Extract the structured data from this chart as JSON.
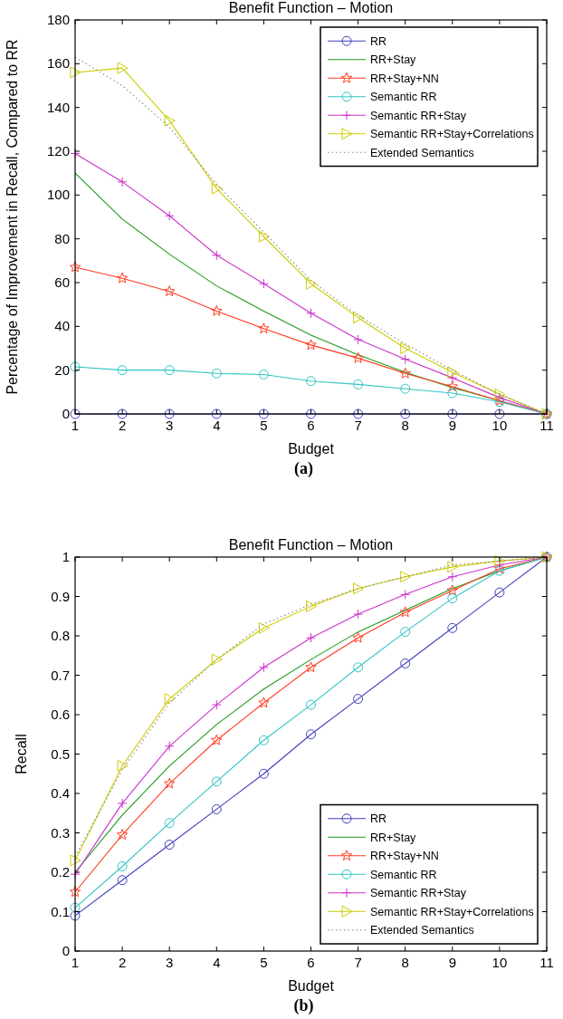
{
  "chart_data": [
    {
      "type": "line",
      "title": "Benefit Function – Motion",
      "xlabel": "Budget",
      "ylabel": "Percentage of Improvement in Recall, Compared to RR",
      "annotations": [
        "(a)"
      ],
      "x": [
        1,
        2,
        3,
        4,
        5,
        6,
        7,
        8,
        9,
        10,
        11
      ],
      "xlim": [
        1,
        11
      ],
      "xticks": [
        1,
        2,
        3,
        4,
        5,
        6,
        7,
        8,
        9,
        10,
        11
      ],
      "ylim": [
        0,
        180
      ],
      "yticks": [
        0,
        20,
        40,
        60,
        80,
        100,
        120,
        140,
        160,
        180
      ],
      "grid": false,
      "legend": "top right",
      "series": [
        {
          "name": "RR",
          "color": "#3f3fbf",
          "marker": "circle",
          "values": [
            0,
            0,
            0,
            0,
            0,
            0,
            0,
            0,
            0,
            0,
            0
          ]
        },
        {
          "name": "RR+Stay",
          "color": "#1a9a1a",
          "marker": "none",
          "values": [
            110,
            89,
            73,
            58.5,
            47,
            36,
            27,
            19,
            12,
            null,
            0
          ]
        },
        {
          "name": "RR+Stay+NN",
          "color": "#ff3b1f",
          "marker": "star",
          "values": [
            67,
            62,
            56,
            47,
            39,
            31.5,
            25.5,
            18.5,
            12.5,
            6,
            0
          ]
        },
        {
          "name": "Semantic RR",
          "color": "#33c4c4",
          "marker": "circle",
          "values": [
            21.5,
            20,
            20,
            18.5,
            18,
            15,
            13.5,
            11.5,
            9.5,
            5.5,
            0
          ]
        },
        {
          "name": "Semantic RR+Stay",
          "color": "#cc33cc",
          "marker": "cross",
          "values": [
            119,
            106,
            90.5,
            72.5,
            59.5,
            46,
            34,
            25,
            16.5,
            7.5,
            0
          ]
        },
        {
          "name": "Semantic RR+Stay+Correlations",
          "color": "#cccc00",
          "marker": "triangle",
          "values": [
            156,
            158,
            134,
            103,
            81,
            59.5,
            44,
            30,
            19,
            9,
            0
          ]
        },
        {
          "name": "Extended Semantics",
          "color": "#888888",
          "marker": "none",
          "line_style": "dotted",
          "values": [
            163,
            150,
            131,
            105,
            83,
            61,
            45,
            32,
            20,
            9,
            0
          ]
        }
      ]
    },
    {
      "type": "line",
      "title": "Benefit Function – Motion",
      "xlabel": "Budget",
      "ylabel": "Recall",
      "annotations": [
        "(b)"
      ],
      "x": [
        1,
        2,
        3,
        4,
        5,
        6,
        7,
        8,
        9,
        10,
        11
      ],
      "xlim": [
        1,
        11
      ],
      "xticks": [
        1,
        2,
        3,
        4,
        5,
        6,
        7,
        8,
        9,
        10,
        11
      ],
      "ylim": [
        0,
        1
      ],
      "yticks": [
        0,
        0.1,
        0.2,
        0.3,
        0.4,
        0.5,
        0.6,
        0.7,
        0.8,
        0.9,
        1
      ],
      "grid": false,
      "legend": "bottom right",
      "series": [
        {
          "name": "RR",
          "color": "#3f3fbf",
          "marker": "circle",
          "values": [
            0.09,
            0.18,
            0.27,
            0.36,
            0.45,
            0.55,
            0.64,
            0.73,
            0.82,
            0.91,
            1
          ]
        },
        {
          "name": "RR+Stay",
          "color": "#1a9a1a",
          "marker": "none",
          "values": [
            0.2,
            0.345,
            0.47,
            0.575,
            0.665,
            0.74,
            0.81,
            0.865,
            0.92,
            0.965,
            1
          ]
        },
        {
          "name": "RR+Stay+NN",
          "color": "#ff3b1f",
          "marker": "star",
          "values": [
            0.15,
            0.295,
            0.425,
            0.535,
            0.63,
            0.72,
            0.795,
            0.86,
            0.915,
            0.97,
            1
          ]
        },
        {
          "name": "Semantic RR",
          "color": "#33c4c4",
          "marker": "circle",
          "values": [
            0.11,
            0.215,
            0.325,
            0.43,
            0.535,
            0.625,
            0.72,
            0.81,
            0.895,
            0.965,
            1
          ]
        },
        {
          "name": "Semantic RR+Stay",
          "color": "#cc33cc",
          "marker": "cross",
          "values": [
            0.195,
            0.375,
            0.52,
            0.625,
            0.72,
            0.795,
            0.855,
            0.905,
            0.95,
            0.98,
            1
          ]
        },
        {
          "name": "Semantic RR+Stay+Correlations",
          "color": "#cccc00",
          "marker": "triangle",
          "values": [
            0.23,
            0.47,
            0.64,
            0.74,
            0.82,
            0.875,
            0.92,
            0.95,
            0.975,
            0.99,
            1
          ]
        },
        {
          "name": "Extended Semantics",
          "color": "#888888",
          "marker": "none",
          "line_style": "dotted",
          "values": [
            0.24,
            0.46,
            0.63,
            0.74,
            0.83,
            0.88,
            0.92,
            0.95,
            0.98,
            0.99,
            1
          ]
        }
      ]
    }
  ]
}
